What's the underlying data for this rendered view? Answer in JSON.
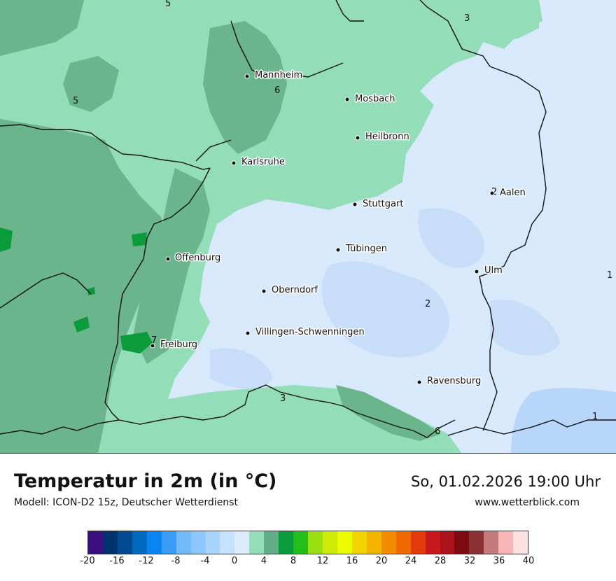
{
  "map": {
    "cities": [
      {
        "name": "Mannheim"
      },
      {
        "name": "Mosbach"
      },
      {
        "name": "Heilbronn"
      },
      {
        "name": "Karlsruhe"
      },
      {
        "name": "Aalen"
      },
      {
        "name": "Stuttgart"
      },
      {
        "name": "Tübingen"
      },
      {
        "name": "Offenburg"
      },
      {
        "name": "Ulm"
      },
      {
        "name": "Oberndorf"
      },
      {
        "name": "Villingen-Schwenningen"
      },
      {
        "name": "Freiburg"
      },
      {
        "name": "Ravensburg"
      }
    ],
    "contour_labels": [
      "5",
      "3",
      "5",
      "6",
      "2",
      "7",
      "2",
      "1",
      "3",
      "1",
      "6"
    ],
    "colors": {
      "cold_blue": "#cfe3fb",
      "light_blue": "#dbeafc",
      "light_green": "#93ddb8",
      "mid_green": "#6ab58b",
      "bright_green": "#0c9b3a"
    }
  },
  "footer": {
    "title": "Temperatur in 2m (in °C)",
    "model": "Modell: ICON-D2 15z, Deutscher Wetterdienst",
    "datetime": "So, 01.02.2026 19:00 Uhr",
    "website": "www.wetterblick.com"
  },
  "legend": {
    "colors": [
      "#3b0f80",
      "#00326e",
      "#004a8f",
      "#0069c0",
      "#0a84f0",
      "#3b9cf6",
      "#72b9fa",
      "#8ec7fb",
      "#a9d4fb",
      "#c6e1fc",
      "#dceafd",
      "#93ddb8",
      "#61ad85",
      "#0c9b3a",
      "#22bd1a",
      "#9adf0f",
      "#cdeb08",
      "#eefa00",
      "#f1d500",
      "#f3b400",
      "#f38c00",
      "#f06a00",
      "#e33a0c",
      "#c7191b",
      "#a8141a",
      "#7c0a10",
      "#8a3134",
      "#c47a7a",
      "#f7b5b5",
      "#fde0e0"
    ],
    "ticks": [
      "-20",
      "-16",
      "-12",
      "-8",
      "-4",
      "0",
      "4",
      "8",
      "12",
      "16",
      "20",
      "24",
      "28",
      "32",
      "36",
      "40"
    ]
  }
}
